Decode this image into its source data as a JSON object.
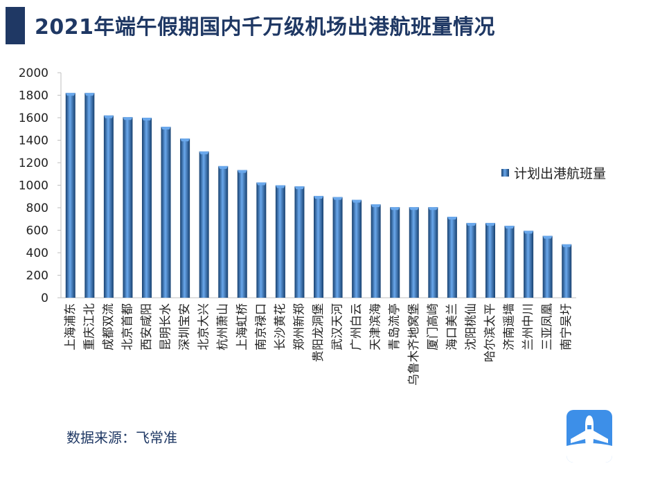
{
  "header": {
    "title": "2021年端午假期国内千万级机场出港航班量情况"
  },
  "footer": {
    "source": "数据来源：飞常准"
  },
  "colors": {
    "title": "#1f3864",
    "bar_light": "#6aa8ec",
    "bar_dark": "#17406f",
    "axis": "#bfbfbf"
  },
  "icons": {
    "logo": "airplane-logo-icon",
    "legend": "legend-swatch-icon"
  },
  "chart_data": {
    "type": "bar",
    "title": "",
    "xlabel": "",
    "ylabel": "",
    "ylim": [
      0,
      2000
    ],
    "yticks": [
      0,
      200,
      400,
      600,
      800,
      1000,
      1200,
      1400,
      1600,
      1800,
      2000
    ],
    "grid": false,
    "legend_position": "right",
    "categories": [
      "上海浦东",
      "重庆江北",
      "成都双流",
      "北京首都",
      "西安咸阳",
      "昆明长水",
      "深圳宝安",
      "北京大兴",
      "杭州萧山",
      "上海虹桥",
      "南京禄口",
      "长沙黄花",
      "郑州新郑",
      "贵阳龙洞堡",
      "武汉天河",
      "广州白云",
      "天津滨海",
      "青岛流亭",
      "乌鲁木齐地窝堡",
      "厦门高崎",
      "海口美兰",
      "沈阳桃仙",
      "哈尔滨太平",
      "济南遥墙",
      "兰州中川",
      "三亚凤凰",
      "南宁吴圩"
    ],
    "series": [
      {
        "name": "计划出港航班量",
        "values": [
          1820,
          1820,
          1620,
          1605,
          1600,
          1520,
          1415,
          1300,
          1170,
          1135,
          1025,
          1000,
          990,
          905,
          895,
          870,
          830,
          805,
          805,
          805,
          720,
          665,
          665,
          640,
          595,
          550,
          475
        ]
      }
    ]
  }
}
